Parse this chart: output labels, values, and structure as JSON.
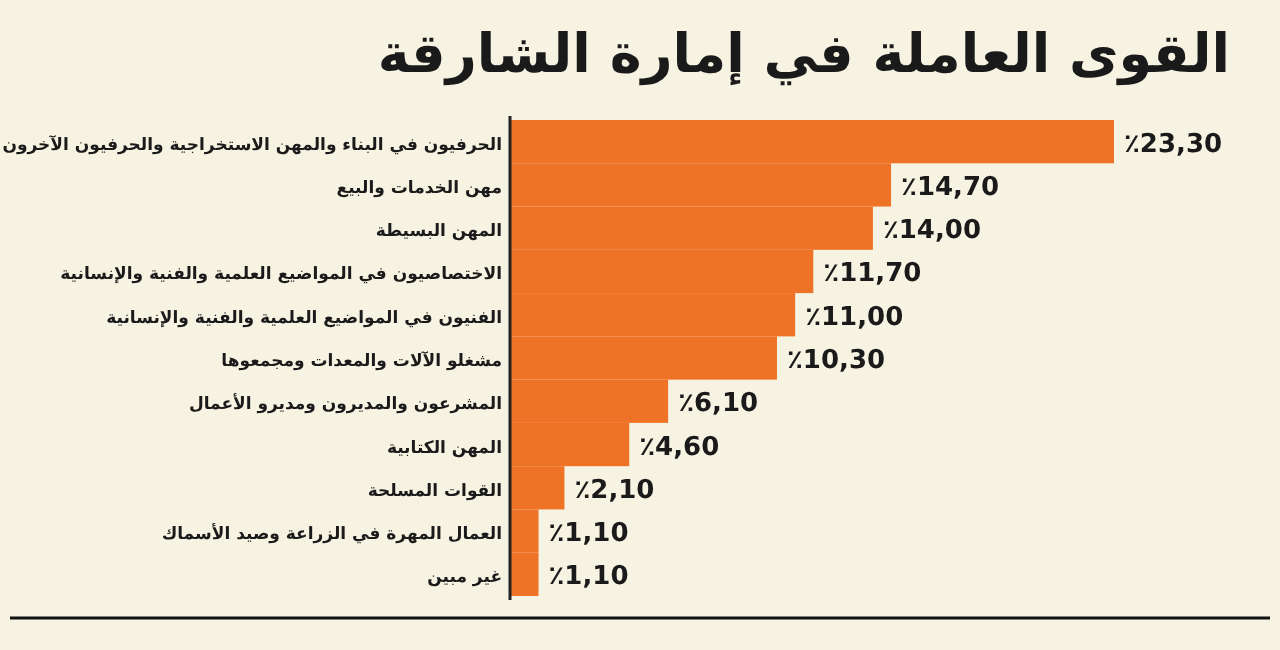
{
  "chart_data": {
    "type": "bar",
    "orientation": "horizontal",
    "title": "القوى العاملة في إمارة الشارقة",
    "categories": [
      "الحرفيون في البناء والمهن الاستخراجية والحرفيون الآخرون",
      "مهن الخدمات والبيع",
      "المهن البسيطة",
      "الاختصاصيون في المواضيع العلمية والفنية والإنسانية",
      "الفنيون في المواضيع العلمية والفنية والإنسانية",
      "مشغلو الآلات والمعدات ومجمعوها",
      "المشرعون والمديرون ومديرو الأعمال",
      "المهن الكتابية",
      "القوات المسلحة",
      "العمال المهرة في الزراعة وصيد الأسماك",
      "غير مبين"
    ],
    "values": [
      23.3,
      14.7,
      14.0,
      11.7,
      11.0,
      10.3,
      6.1,
      4.6,
      2.1,
      1.1,
      1.1
    ],
    "value_labels": [
      "٪23,30",
      "٪14,70",
      "٪14,00",
      "٪11,70",
      "٪11,00",
      "٪10,30",
      "٪6,10",
      "٪4,60",
      "٪2,10",
      "٪1,10",
      "٪1,10"
    ],
    "color": "#ee7326",
    "grid": false
  }
}
